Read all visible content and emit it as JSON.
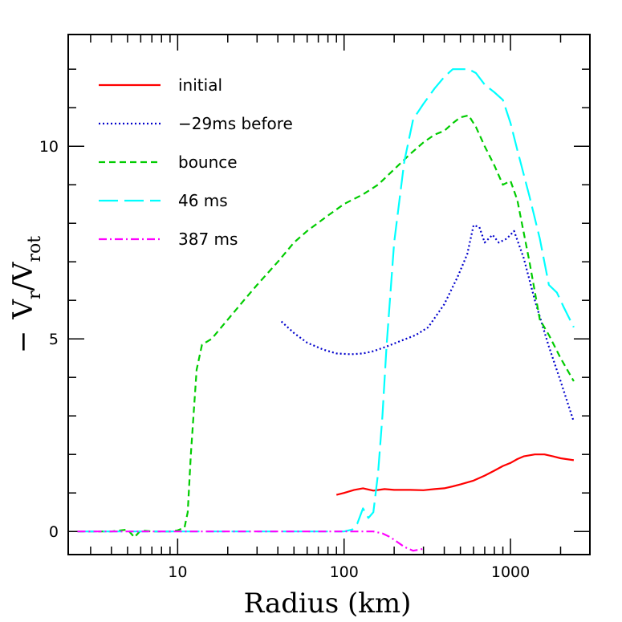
{
  "chart_data": {
    "type": "line",
    "xlabel": "Radius (km)",
    "ylabel_parts": {
      "minus": "−",
      "sub_r": "r",
      "sub_rot": "rot",
      "v": "V",
      "slash": "/"
    },
    "x_scale": "log",
    "xlim": [
      2.2,
      3000
    ],
    "ylim": [
      -0.6,
      12.9
    ],
    "x_ticks": [
      10,
      100,
      1000
    ],
    "x_tick_labels": [
      "10",
      "100",
      "1000"
    ],
    "y_ticks": [
      0,
      5,
      10
    ],
    "y_tick_labels": [
      "0",
      "5",
      "10"
    ],
    "legend_position": "top-left",
    "series": [
      {
        "name": "initial",
        "color": "#ff0000",
        "dash": "solid",
        "x": [
          90,
          100,
          115,
          130,
          150,
          175,
          200,
          250,
          300,
          350,
          400,
          450,
          500,
          600,
          700,
          800,
          900,
          1000,
          1100,
          1200,
          1400,
          1600,
          1800,
          2000,
          2400
        ],
        "y": [
          0.95,
          1.0,
          1.08,
          1.12,
          1.06,
          1.1,
          1.08,
          1.08,
          1.07,
          1.1,
          1.12,
          1.17,
          1.22,
          1.32,
          1.45,
          1.58,
          1.7,
          1.78,
          1.88,
          1.95,
          2.0,
          2.0,
          1.95,
          1.9,
          1.85
        ]
      },
      {
        "name": "−29ms before",
        "color": "#0000cc",
        "dash": "dotted",
        "x": [
          42,
          50,
          60,
          75,
          90,
          110,
          130,
          150,
          180,
          220,
          270,
          320,
          400,
          480,
          550,
          600,
          650,
          700,
          780,
          850,
          950,
          1050,
          1200,
          1400,
          1700,
          2000,
          2400
        ],
        "y": [
          5.45,
          5.15,
          4.9,
          4.72,
          4.62,
          4.6,
          4.62,
          4.68,
          4.8,
          4.95,
          5.1,
          5.3,
          5.9,
          6.6,
          7.2,
          7.95,
          7.9,
          7.5,
          7.7,
          7.5,
          7.6,
          7.8,
          7.1,
          6.0,
          4.8,
          3.9,
          2.85
        ]
      },
      {
        "name": "bounce",
        "color": "#00cc00",
        "dash": "dashed",
        "x": [
          2.5,
          3,
          4,
          5,
          5.5,
          6,
          7,
          8,
          9,
          10,
          11,
          11.5,
          12,
          13,
          14,
          16,
          20,
          25,
          30,
          40,
          50,
          60,
          80,
          100,
          130,
          160,
          200,
          250,
          300,
          350,
          400,
          450,
          500,
          560,
          620,
          700,
          800,
          900,
          1000,
          1100,
          1300,
          1500,
          1700,
          2000,
          2400
        ],
        "y": [
          0.0,
          0.0,
          0.0,
          0.05,
          -0.15,
          0.03,
          0.0,
          0.0,
          0.0,
          0.03,
          0.1,
          0.5,
          2.0,
          4.2,
          4.85,
          5.0,
          5.5,
          6.0,
          6.4,
          7.0,
          7.5,
          7.8,
          8.2,
          8.5,
          8.75,
          9.0,
          9.4,
          9.8,
          10.1,
          10.3,
          10.4,
          10.6,
          10.75,
          10.8,
          10.5,
          10.0,
          9.5,
          9.0,
          9.1,
          8.6,
          7.0,
          5.5,
          5.1,
          4.5,
          3.9
        ]
      },
      {
        "name": "46 ms",
        "color": "#00ffff",
        "dash": "longdash",
        "x": [
          2.5,
          10,
          50,
          100,
          112,
          120,
          130,
          140,
          150,
          160,
          170,
          180,
          200,
          230,
          260,
          300,
          350,
          400,
          450,
          500,
          560,
          620,
          700,
          800,
          900,
          1000,
          1100,
          1300,
          1500,
          1700,
          1900,
          2100,
          2400
        ],
        "y": [
          0.0,
          0.0,
          0.0,
          0.0,
          0.05,
          0.2,
          0.6,
          0.35,
          0.5,
          1.5,
          3.0,
          4.8,
          7.5,
          9.6,
          10.7,
          11.1,
          11.5,
          11.8,
          12.0,
          12.0,
          12.0,
          11.9,
          11.6,
          11.4,
          11.2,
          10.6,
          9.9,
          8.7,
          7.6,
          6.4,
          6.2,
          5.8,
          5.3
        ]
      },
      {
        "name": "387 ms",
        "color": "#ff00ff",
        "dash": "dashdot",
        "x": [
          2.5,
          10,
          50,
          100,
          150,
          170,
          190,
          210,
          230,
          260,
          300
        ],
        "y": [
          0.0,
          0.0,
          0.0,
          0.0,
          0.0,
          -0.05,
          -0.15,
          -0.28,
          -0.4,
          -0.5,
          -0.45
        ]
      }
    ]
  }
}
